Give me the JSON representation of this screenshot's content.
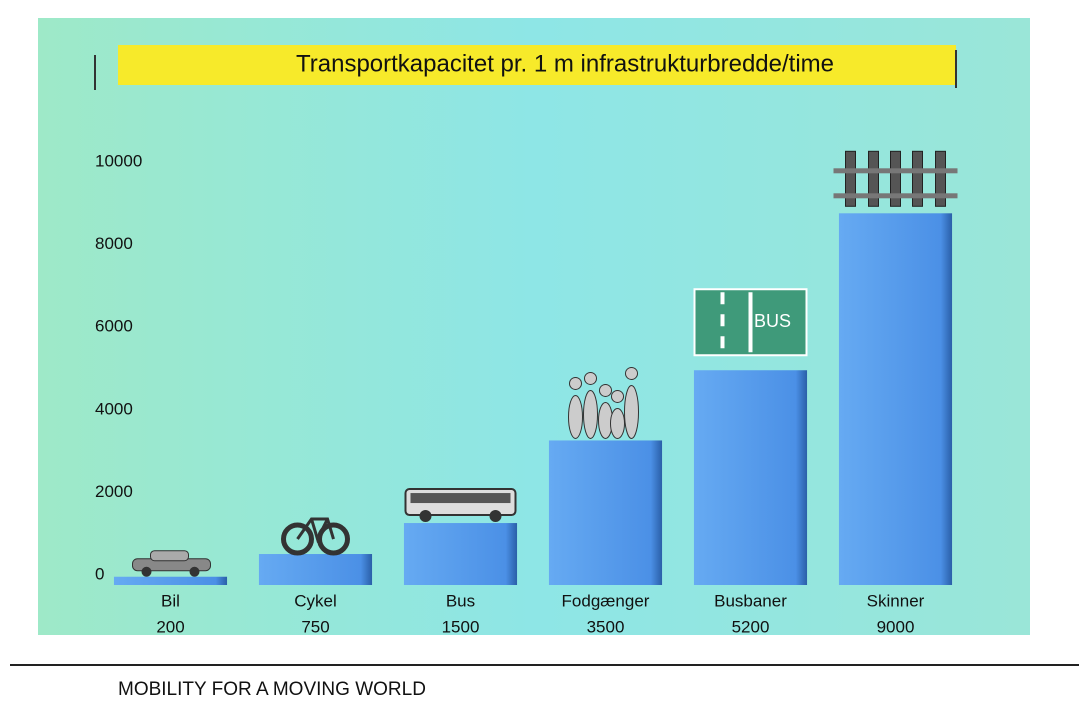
{
  "chart_data": {
    "type": "bar",
    "title": "Transportkapacitet pr. 1 m infrastrukturbredde/time",
    "categories": [
      "Bil",
      "Cykel",
      "Bus",
      "Fodgænger",
      "Busbaner",
      "Skinner"
    ],
    "values": [
      200,
      750,
      1500,
      3500,
      5200,
      9000
    ],
    "color": "#4f95ea",
    "ylim": [
      0,
      10000
    ],
    "yticks": [
      0,
      2000,
      4000,
      6000,
      8000,
      10000
    ],
    "bus_lane_label": "BUS"
  },
  "footer": "MOBILITY FOR A MOVING WORLD"
}
